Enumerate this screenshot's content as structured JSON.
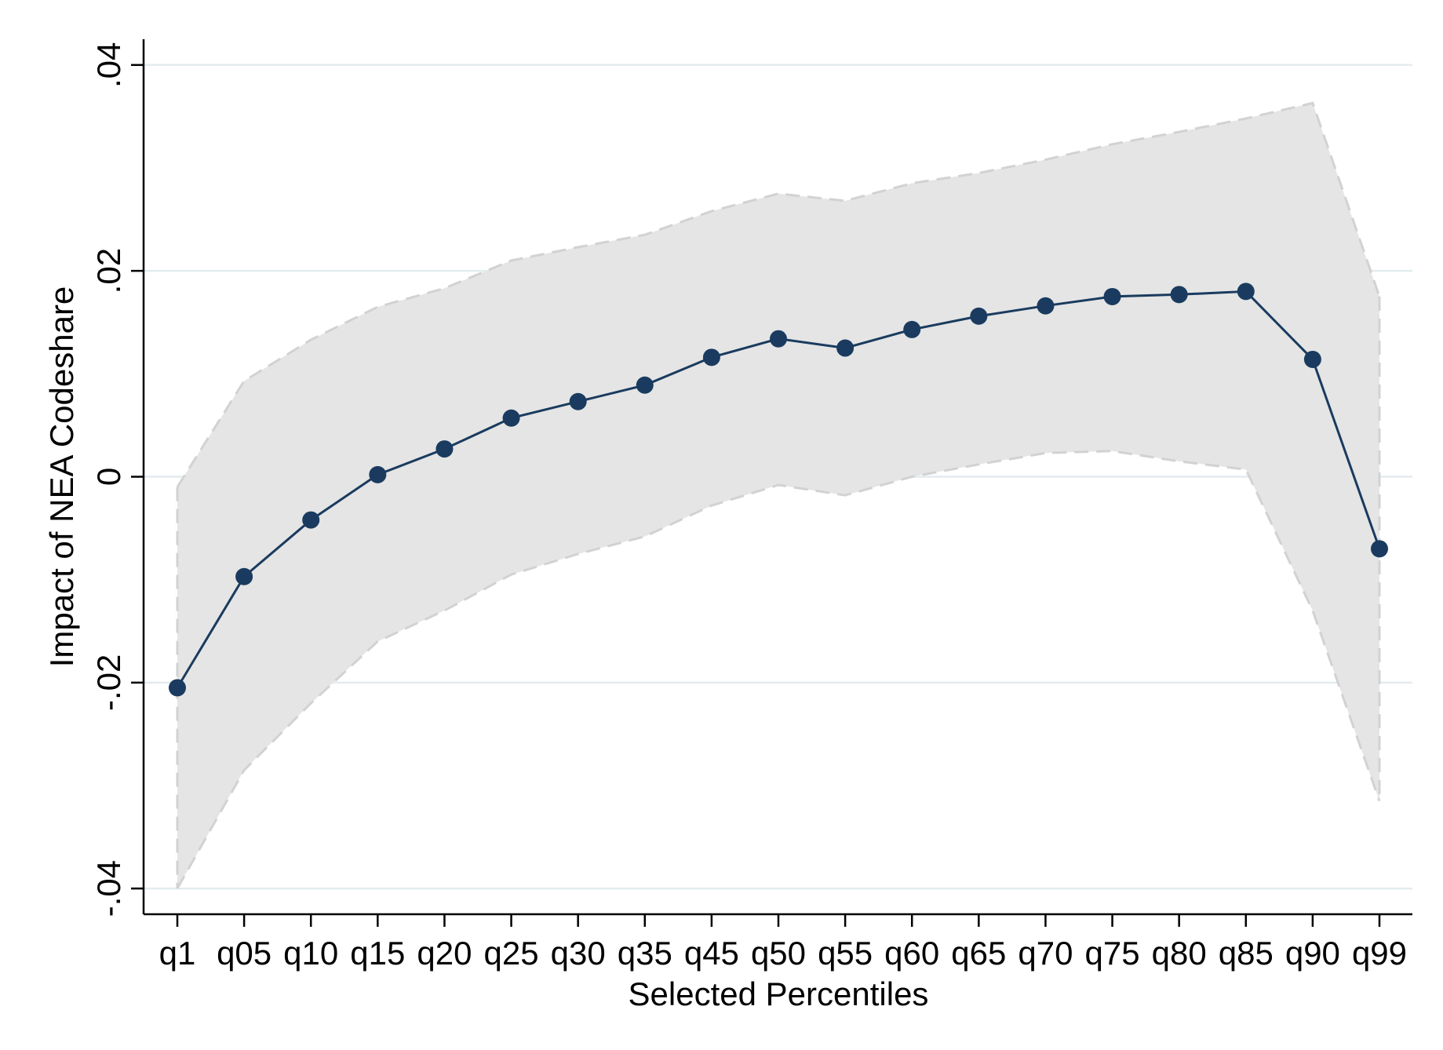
{
  "chart_data": {
    "type": "line",
    "xlabel": "Selected Percentiles",
    "ylabel": "Impact of NEA Codeshare",
    "categories": [
      "q1",
      "q05",
      "q10",
      "q15",
      "q20",
      "q25",
      "q30",
      "q35",
      "q45",
      "q50",
      "q55",
      "q60",
      "q65",
      "q70",
      "q75",
      "q80",
      "q85",
      "q90",
      "q99"
    ],
    "series": [
      {
        "values": [
          -0.0205,
          -0.0097,
          -0.0042,
          0.0002,
          0.0027,
          0.0057,
          0.0073,
          0.0089,
          0.0116,
          0.0134,
          0.0125,
          0.0143,
          0.0156,
          0.0166,
          0.0175,
          0.0177,
          0.018,
          0.0114,
          -0.007
        ]
      }
    ],
    "ci_upper": [
      -0.001,
      0.0093,
      0.0133,
      0.0165,
      0.0183,
      0.021,
      0.0223,
      0.0235,
      0.0258,
      0.0275,
      0.0268,
      0.0285,
      0.0295,
      0.0308,
      0.0323,
      0.0335,
      0.0348,
      0.0363,
      0.0175
    ],
    "ci_lower": [
      -0.04,
      -0.0285,
      -0.022,
      -0.016,
      -0.013,
      -0.0095,
      -0.0075,
      -0.0058,
      -0.0028,
      -0.0008,
      -0.0018,
      0.0,
      0.0012,
      0.0023,
      0.0025,
      0.0015,
      0.0007,
      -0.013,
      -0.0315
    ],
    "y_ticks": [
      -0.04,
      -0.02,
      0,
      0.02,
      0.04
    ],
    "y_tick_labels": [
      "-.04",
      "-.02",
      "0",
      ".02",
      ".04"
    ],
    "ylim": [
      -0.0425,
      0.0425
    ],
    "grid": true,
    "colors": {
      "line": "#1a3b5f",
      "marker": "#1a3b5f",
      "ci_fill": "#e5e5e5",
      "ci_edge": "#d2d2d2",
      "grid": "#e3ecef",
      "axis": "#000000"
    }
  }
}
